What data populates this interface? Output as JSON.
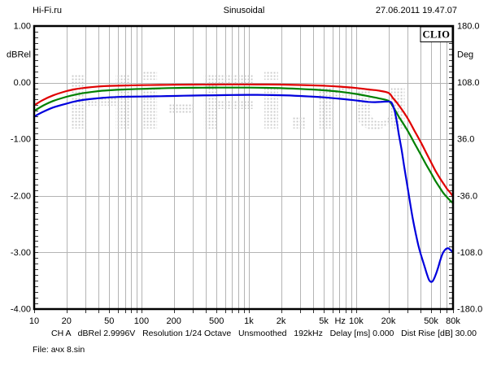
{
  "header": {
    "site": "Hi-Fi.ru",
    "measurement": "Sinusoidal",
    "datetime": "27.06.2011 19.47.07"
  },
  "logo": "CLIO",
  "watermark": "Hi-Fi.ru",
  "status_line": "CH A   dBRel 2.9996V   Resolution 1/24 Octave   Unsmoothed   192kHz   Delay [ms] 0.000   Dist Rise [dB] 30.00",
  "file_line": "File: ачх 8.sin",
  "colors": {
    "red_series": "#e00000",
    "green_series": "#008000",
    "blue_series": "#0000dd",
    "grid": "#b4b4b4",
    "tick": "#333333",
    "watermark_dot": "#c9c9c9",
    "border": "#000000",
    "text": "#000000"
  },
  "chart_data": {
    "type": "line",
    "title": "Sinusoidal",
    "grid": true,
    "legend": "none",
    "x_axis": {
      "scale": "log",
      "min": 10,
      "max": 80000,
      "unit": "Hz",
      "unit_position_hz": 7100,
      "ticks": [
        {
          "f": 10,
          "label": "10"
        },
        {
          "f": 20,
          "label": "20"
        },
        {
          "f": 50,
          "label": "50"
        },
        {
          "f": 100,
          "label": "100"
        },
        {
          "f": 200,
          "label": "200"
        },
        {
          "f": 500,
          "label": "500"
        },
        {
          "f": 1000,
          "label": "1k"
        },
        {
          "f": 2000,
          "label": "2k"
        },
        {
          "f": 5000,
          "label": "5k"
        },
        {
          "f": 10000,
          "label": "10k"
        },
        {
          "f": 20000,
          "label": "20k"
        },
        {
          "f": 50000,
          "label": "50k"
        },
        {
          "f": 80000,
          "label": "80k"
        }
      ]
    },
    "y_left": {
      "unit": "dBRel",
      "min": -4,
      "max": 1,
      "unit_position_db": 0.5,
      "ticks": [
        {
          "v": 1,
          "label": "1.00"
        },
        {
          "v": 0,
          "label": "0.00"
        },
        {
          "v": -1,
          "label": "-1.00"
        },
        {
          "v": -2,
          "label": "-2.00"
        },
        {
          "v": -3,
          "label": "-3.00"
        },
        {
          "v": -4,
          "label": "-4.00"
        }
      ]
    },
    "y_right": {
      "unit": "Deg",
      "min": -180,
      "max": 180,
      "ticks": [
        {
          "v": 180,
          "label": "180.0"
        },
        {
          "v": 108,
          "label": "108.0"
        },
        {
          "v": 36,
          "label": "36.0"
        },
        {
          "v": -36,
          "label": "-36.0"
        },
        {
          "v": -108,
          "label": "-108.0"
        },
        {
          "v": -180,
          "label": "-180.0"
        }
      ]
    },
    "series": [
      {
        "name": "red",
        "color_key": "red_series",
        "points": [
          [
            10,
            -0.4
          ],
          [
            12,
            -0.31
          ],
          [
            15,
            -0.225
          ],
          [
            20,
            -0.15
          ],
          [
            25,
            -0.11
          ],
          [
            30,
            -0.09
          ],
          [
            40,
            -0.068
          ],
          [
            50,
            -0.058
          ],
          [
            70,
            -0.05
          ],
          [
            100,
            -0.045
          ],
          [
            150,
            -0.04
          ],
          [
            200,
            -0.038
          ],
          [
            300,
            -0.035
          ],
          [
            500,
            -0.033
          ],
          [
            700,
            -0.032
          ],
          [
            1000,
            -0.032
          ],
          [
            1500,
            -0.033
          ],
          [
            2000,
            -0.035
          ],
          [
            3000,
            -0.042
          ],
          [
            5000,
            -0.055
          ],
          [
            7000,
            -0.07
          ],
          [
            10000,
            -0.095
          ],
          [
            13000,
            -0.12
          ],
          [
            16000,
            -0.14
          ],
          [
            20000,
            -0.18
          ],
          [
            22000,
            -0.27
          ],
          [
            25000,
            -0.4
          ],
          [
            30000,
            -0.62
          ],
          [
            35000,
            -0.85
          ],
          [
            40000,
            -1.05
          ],
          [
            45000,
            -1.24
          ],
          [
            50000,
            -1.41
          ],
          [
            55000,
            -1.56
          ],
          [
            60000,
            -1.68
          ],
          [
            65000,
            -1.78
          ],
          [
            70000,
            -1.87
          ],
          [
            75000,
            -1.94
          ],
          [
            80000,
            -2.01
          ]
        ]
      },
      {
        "name": "green",
        "color_key": "green_series",
        "points": [
          [
            10,
            -0.5
          ],
          [
            12,
            -0.41
          ],
          [
            15,
            -0.325
          ],
          [
            20,
            -0.25
          ],
          [
            25,
            -0.205
          ],
          [
            30,
            -0.18
          ],
          [
            40,
            -0.15
          ],
          [
            50,
            -0.135
          ],
          [
            70,
            -0.12
          ],
          [
            100,
            -0.11
          ],
          [
            150,
            -0.1
          ],
          [
            200,
            -0.095
          ],
          [
            300,
            -0.09
          ],
          [
            500,
            -0.088
          ],
          [
            700,
            -0.087
          ],
          [
            1000,
            -0.088
          ],
          [
            1500,
            -0.092
          ],
          [
            2000,
            -0.098
          ],
          [
            3000,
            -0.11
          ],
          [
            5000,
            -0.135
          ],
          [
            7000,
            -0.16
          ],
          [
            10000,
            -0.2
          ],
          [
            13000,
            -0.24
          ],
          [
            16000,
            -0.275
          ],
          [
            20000,
            -0.32
          ],
          [
            22000,
            -0.42
          ],
          [
            25000,
            -0.6
          ],
          [
            30000,
            -0.84
          ],
          [
            35000,
            -1.07
          ],
          [
            40000,
            -1.27
          ],
          [
            45000,
            -1.45
          ],
          [
            50000,
            -1.6
          ],
          [
            55000,
            -1.74
          ],
          [
            60000,
            -1.85
          ],
          [
            65000,
            -1.95
          ],
          [
            70000,
            -2.02
          ],
          [
            75000,
            -2.08
          ],
          [
            80000,
            -2.13
          ]
        ]
      },
      {
        "name": "blue",
        "color_key": "blue_series",
        "points": [
          [
            10,
            -0.6
          ],
          [
            12,
            -0.52
          ],
          [
            15,
            -0.44
          ],
          [
            20,
            -0.37
          ],
          [
            25,
            -0.325
          ],
          [
            30,
            -0.3
          ],
          [
            40,
            -0.275
          ],
          [
            50,
            -0.26
          ],
          [
            70,
            -0.25
          ],
          [
            100,
            -0.245
          ],
          [
            150,
            -0.24
          ],
          [
            200,
            -0.235
          ],
          [
            300,
            -0.228
          ],
          [
            500,
            -0.222
          ],
          [
            700,
            -0.218
          ],
          [
            1000,
            -0.215
          ],
          [
            1500,
            -0.218
          ],
          [
            2000,
            -0.222
          ],
          [
            3000,
            -0.235
          ],
          [
            5000,
            -0.26
          ],
          [
            7000,
            -0.285
          ],
          [
            9000,
            -0.305
          ],
          [
            11000,
            -0.325
          ],
          [
            13000,
            -0.34
          ],
          [
            15000,
            -0.345
          ],
          [
            17000,
            -0.34
          ],
          [
            19000,
            -0.335
          ],
          [
            21000,
            -0.34
          ],
          [
            22000,
            -0.4
          ],
          [
            23000,
            -0.52
          ],
          [
            24000,
            -0.7
          ],
          [
            25000,
            -0.91
          ],
          [
            26500,
            -1.18
          ],
          [
            28000,
            -1.47
          ],
          [
            30000,
            -1.82
          ],
          [
            32000,
            -2.15
          ],
          [
            34000,
            -2.44
          ],
          [
            36000,
            -2.67
          ],
          [
            38000,
            -2.87
          ],
          [
            40000,
            -3.03
          ],
          [
            43000,
            -3.22
          ],
          [
            46000,
            -3.4
          ],
          [
            48000,
            -3.49
          ],
          [
            50000,
            -3.52
          ],
          [
            52000,
            -3.5
          ],
          [
            55000,
            -3.4
          ],
          [
            58000,
            -3.27
          ],
          [
            61000,
            -3.13
          ],
          [
            64000,
            -3.02
          ],
          [
            67000,
            -2.96
          ],
          [
            70000,
            -2.93
          ],
          [
            73000,
            -2.93
          ],
          [
            76000,
            -2.96
          ],
          [
            80000,
            -3.0
          ]
        ]
      }
    ]
  }
}
